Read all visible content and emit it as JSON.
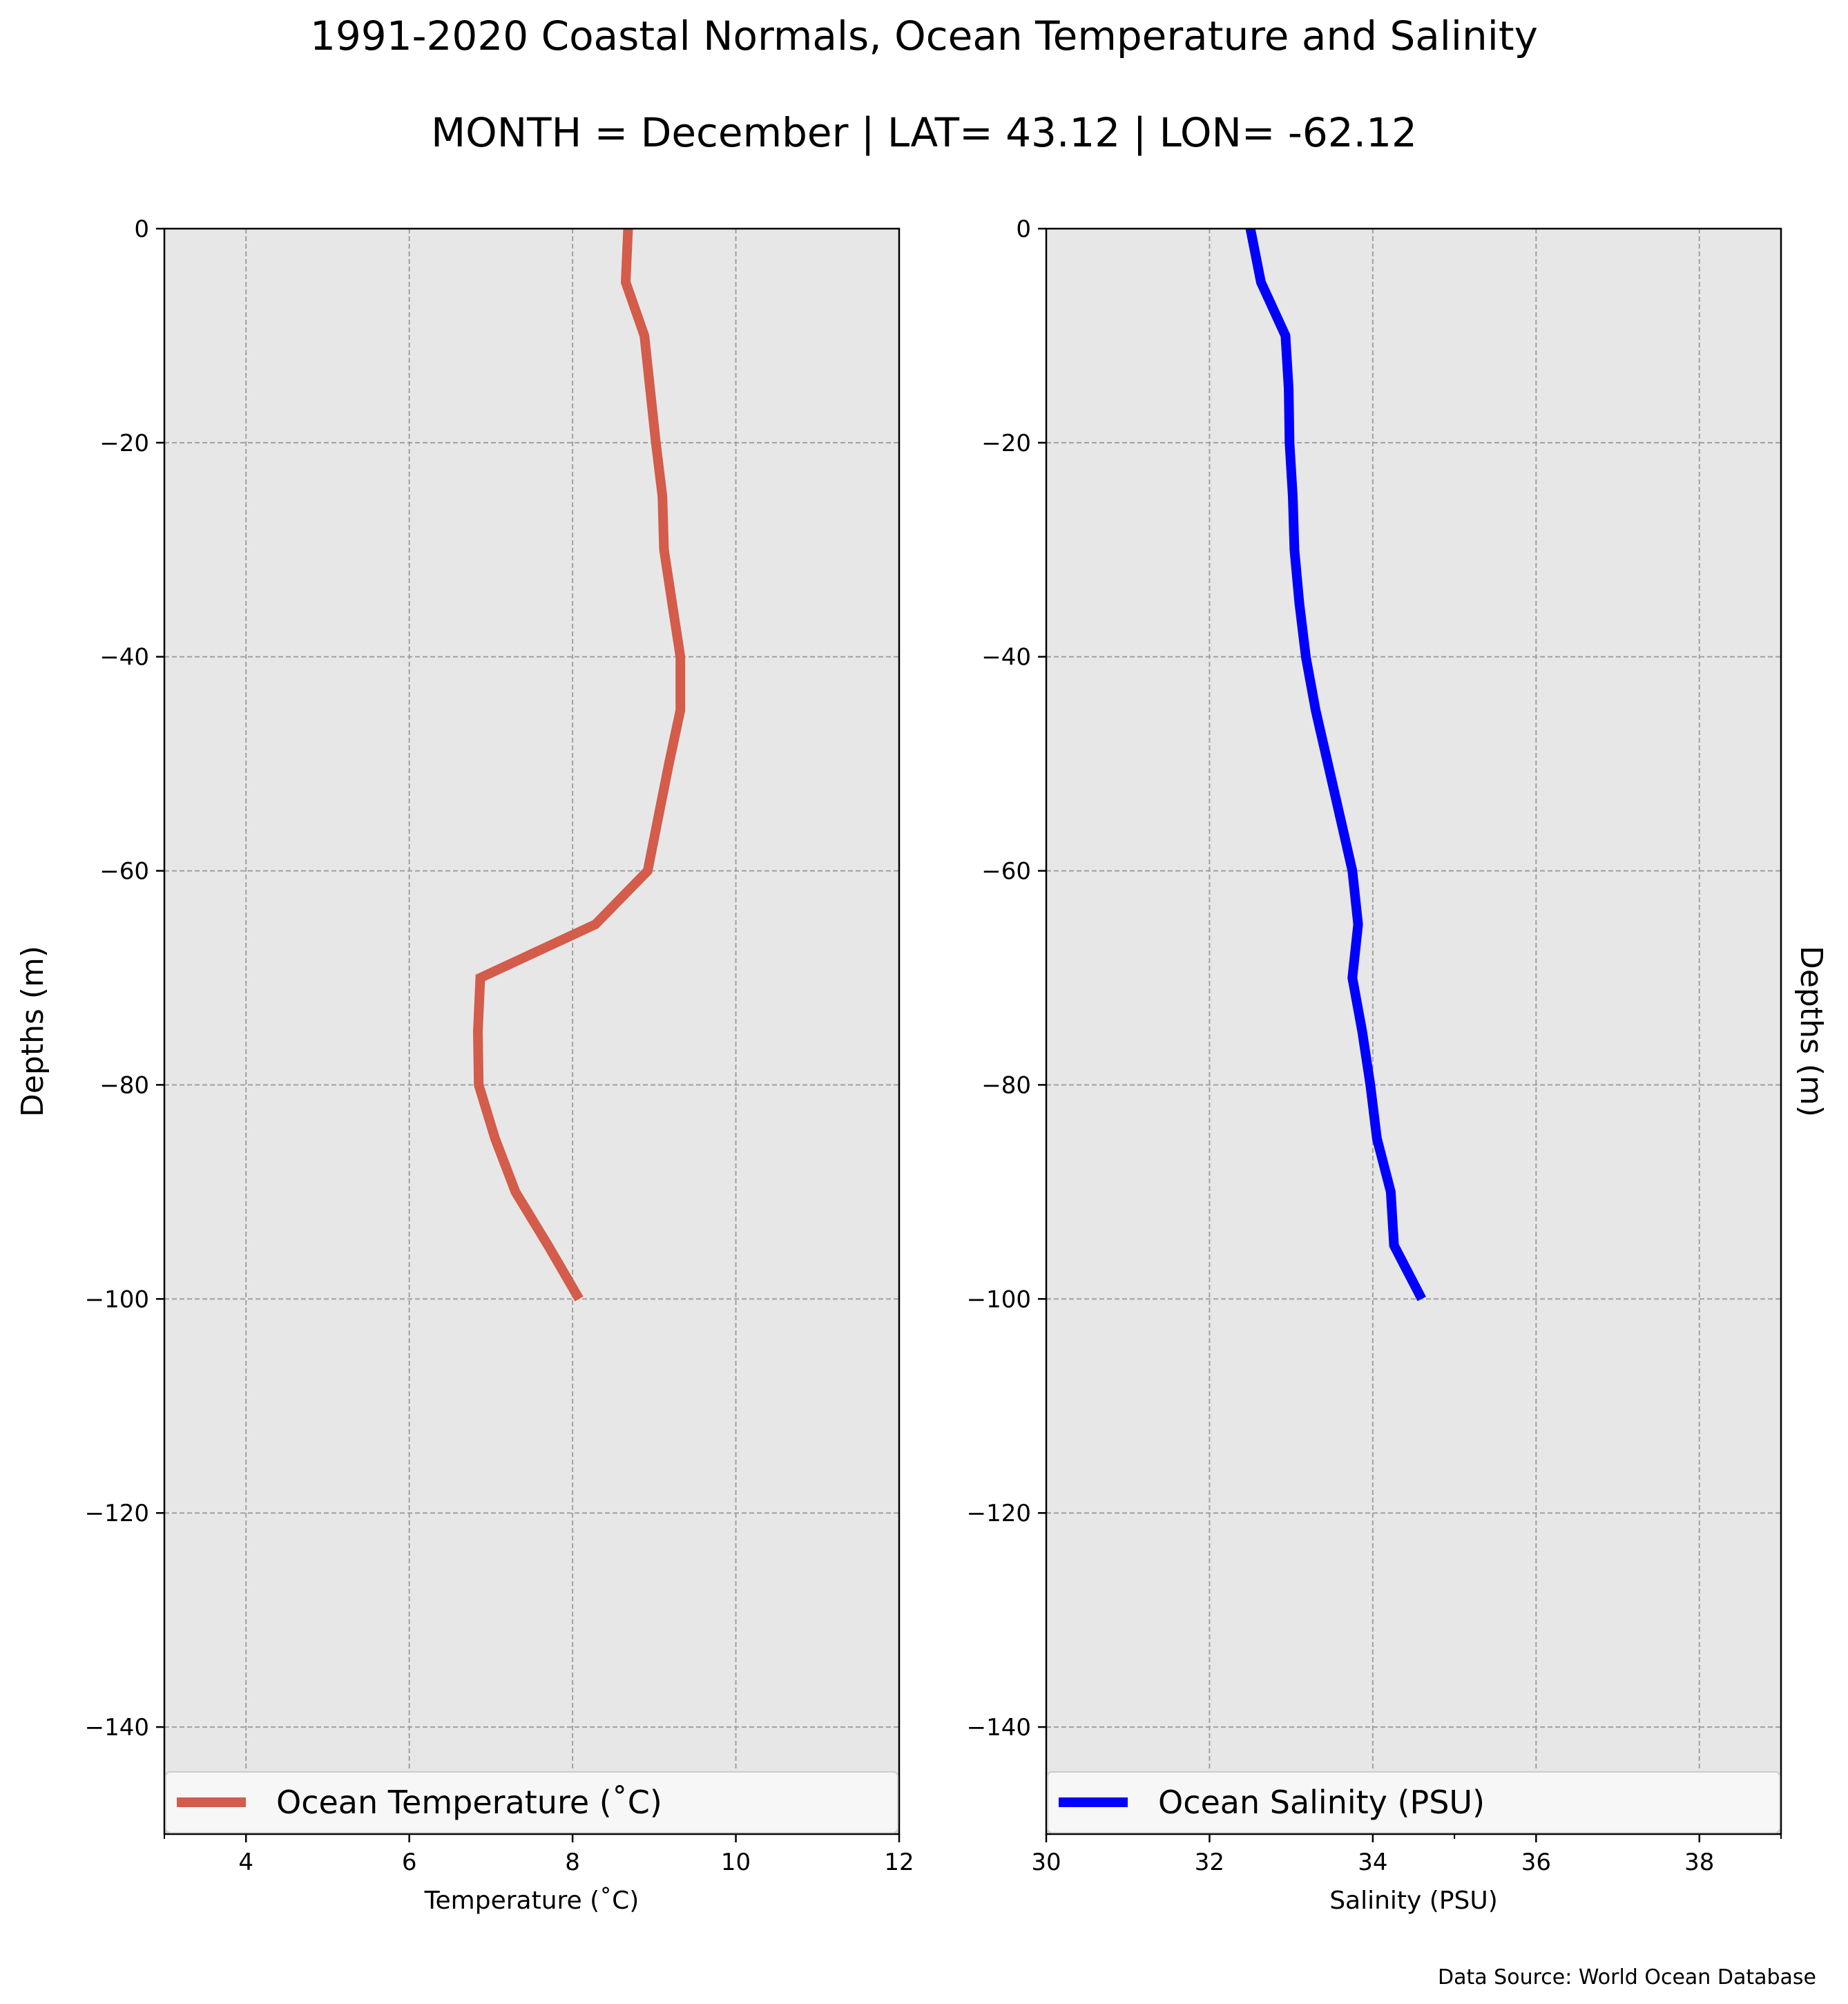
{
  "figure": {
    "title": "1991-2020 Coastal Normals, Ocean Temperature and Salinity",
    "subtitle": "MONTH = December | LAT= 43.12 | LON= -62.12",
    "source_note": "Data Source: World Ocean Database",
    "background_color": "#ffffff",
    "plot_background": "#e8e7e8",
    "grid_color": "#a0a0a0"
  },
  "chart_data": [
    {
      "type": "line",
      "xlabel": "Temperature (˚C)",
      "ylabel": "Depths (m)",
      "xlim": [
        3,
        12
      ],
      "ylim": [
        -150,
        0
      ],
      "xticks": [
        4,
        6,
        8,
        10,
        12
      ],
      "yticks": [
        0,
        -20,
        -40,
        -60,
        -80,
        -100,
        -120,
        -140
      ],
      "grid": true,
      "legend_position": "bottom",
      "series": [
        {
          "name": "Ocean Temperature (˚C)",
          "color": "#d35c4b",
          "points": [
            {
              "x": 8.68,
              "y": 0
            },
            {
              "x": 8.65,
              "y": -5
            },
            {
              "x": 8.88,
              "y": -10
            },
            {
              "x": 8.95,
              "y": -15
            },
            {
              "x": 9.02,
              "y": -20
            },
            {
              "x": 9.1,
              "y": -25
            },
            {
              "x": 9.12,
              "y": -30
            },
            {
              "x": 9.22,
              "y": -35
            },
            {
              "x": 9.32,
              "y": -40
            },
            {
              "x": 9.32,
              "y": -45
            },
            {
              "x": 9.18,
              "y": -50
            },
            {
              "x": 9.05,
              "y": -55
            },
            {
              "x": 8.92,
              "y": -60
            },
            {
              "x": 8.28,
              "y": -65
            },
            {
              "x": 6.87,
              "y": -70
            },
            {
              "x": 6.84,
              "y": -75
            },
            {
              "x": 6.85,
              "y": -80
            },
            {
              "x": 7.05,
              "y": -85
            },
            {
              "x": 7.3,
              "y": -90
            },
            {
              "x": 7.7,
              "y": -95
            },
            {
              "x": 8.08,
              "y": -100
            }
          ]
        }
      ]
    },
    {
      "type": "line",
      "xlabel": "Salinity (PSU)",
      "ylabel": "Depths (m)",
      "xlim": [
        30,
        39
      ],
      "ylim": [
        -150,
        0
      ],
      "xticks": [
        30,
        32,
        34,
        36,
        38
      ],
      "yticks": [
        0,
        -20,
        -40,
        -60,
        -80,
        -100,
        -120,
        -140
      ],
      "grid": true,
      "legend_position": "bottom",
      "series": [
        {
          "name": "Ocean Salinity (PSU)",
          "color": "#0000ff",
          "points": [
            {
              "x": 32.5,
              "y": 0
            },
            {
              "x": 32.63,
              "y": -5
            },
            {
              "x": 32.93,
              "y": -10
            },
            {
              "x": 32.97,
              "y": -15
            },
            {
              "x": 32.98,
              "y": -20
            },
            {
              "x": 33.02,
              "y": -25
            },
            {
              "x": 33.04,
              "y": -30
            },
            {
              "x": 33.1,
              "y": -35
            },
            {
              "x": 33.18,
              "y": -40
            },
            {
              "x": 33.3,
              "y": -45
            },
            {
              "x": 33.45,
              "y": -50
            },
            {
              "x": 33.6,
              "y": -55
            },
            {
              "x": 33.75,
              "y": -60
            },
            {
              "x": 33.82,
              "y": -65
            },
            {
              "x": 33.75,
              "y": -70
            },
            {
              "x": 33.87,
              "y": -75
            },
            {
              "x": 33.97,
              "y": -80
            },
            {
              "x": 34.05,
              "y": -85
            },
            {
              "x": 34.22,
              "y": -90
            },
            {
              "x": 34.26,
              "y": -95
            },
            {
              "x": 34.6,
              "y": -100
            }
          ]
        }
      ]
    }
  ]
}
